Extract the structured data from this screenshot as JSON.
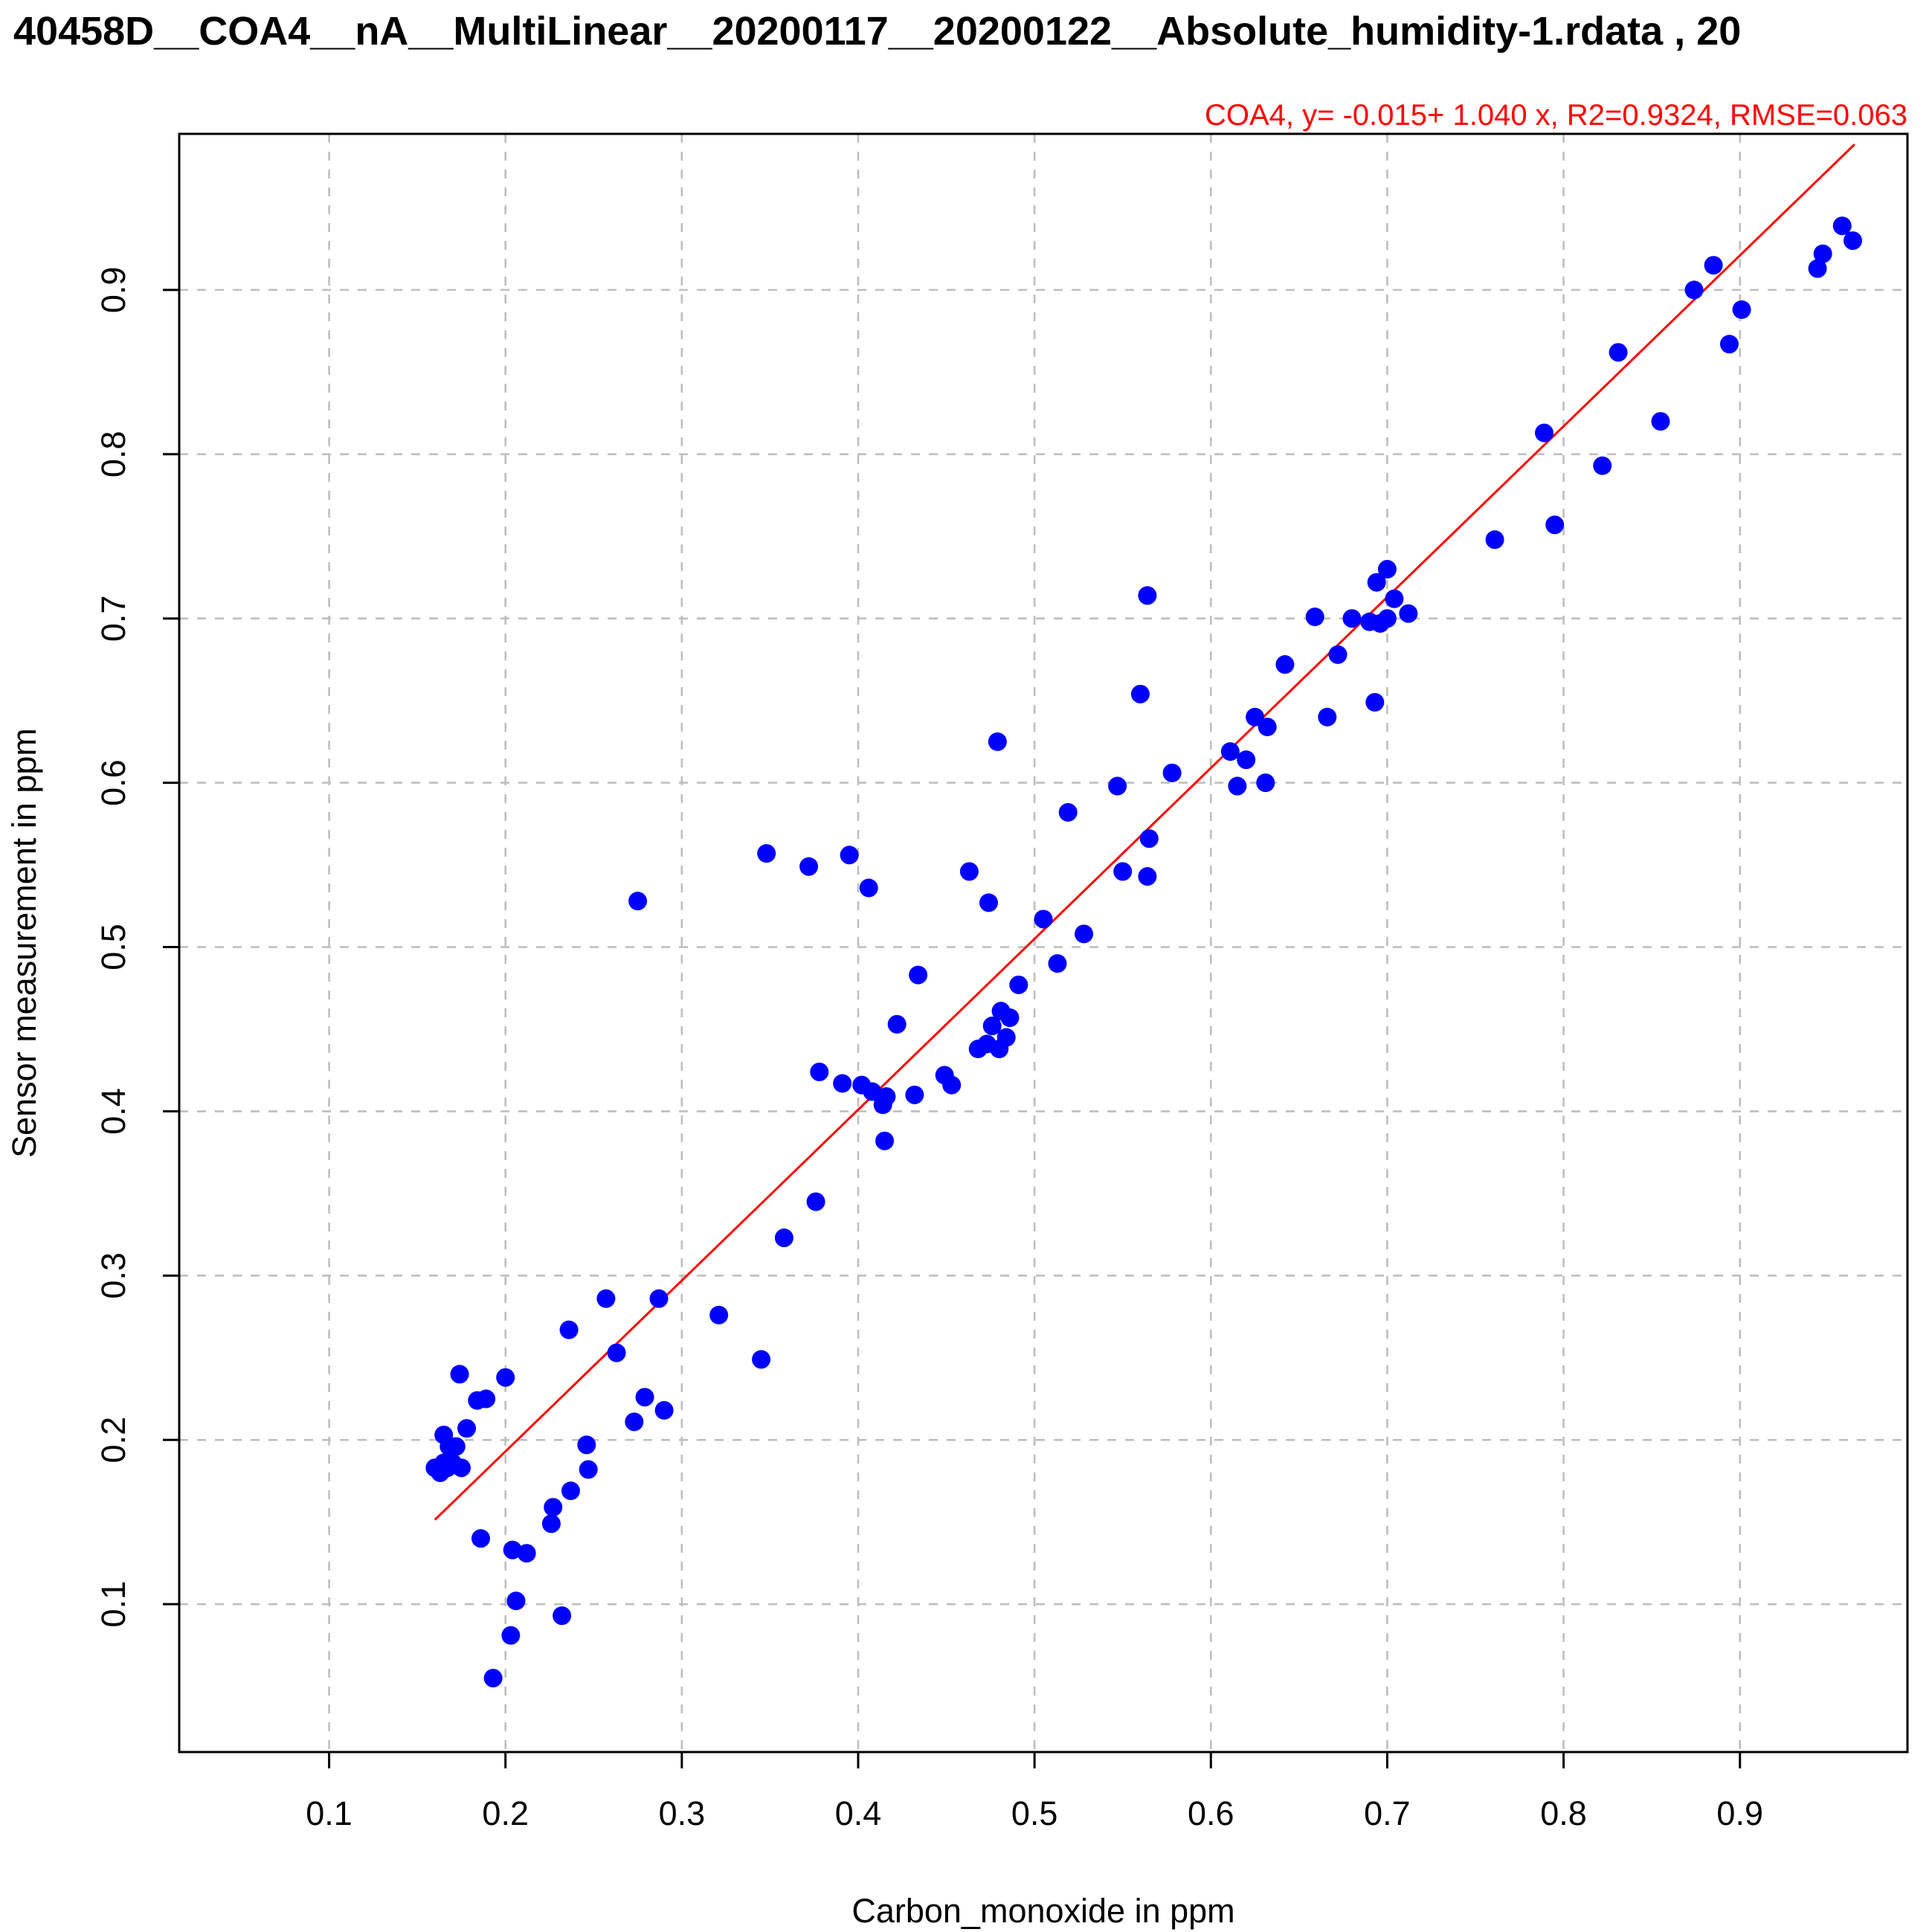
{
  "chart_data": {
    "type": "scatter",
    "title": ", 40458D__COA4__nA__MultiLinear__20200117__20200122__Absolute_humidity-1.rdata , 20",
    "xlabel": "Carbon_monoxide in ppm",
    "ylabel": "Sensor measurement in ppm",
    "xlim": [
      0.015,
      0.995
    ],
    "ylim": [
      0.01,
      0.995
    ],
    "xticks": [
      0.1,
      0.2,
      0.3,
      0.4,
      0.5,
      0.6,
      0.7,
      0.8,
      0.9
    ],
    "yticks": [
      0.1,
      0.2,
      0.3,
      0.4,
      0.5,
      0.6,
      0.7,
      0.8,
      0.9
    ],
    "xtick_labels": [
      "0.1",
      "0.2",
      "0.3",
      "0.4",
      "0.5",
      "0.6",
      "0.7",
      "0.8",
      "0.9"
    ],
    "ytick_labels": [
      "0.1",
      "0.2",
      "0.3",
      "0.4",
      "0.5",
      "0.6",
      "0.7",
      "0.8",
      "0.9"
    ],
    "grid": true,
    "point_color": "#0000ff",
    "fit_color": "#ff0000",
    "fit_annotation": "COA4, y= -0.015+ 1.040 x, R2=0.9324, RMSE=0.063",
    "fit_line": {
      "intercept": -0.015,
      "slope": 1.04,
      "x_range": [
        0.16,
        0.965
      ]
    },
    "points": [
      [
        0.16,
        0.183
      ],
      [
        0.163,
        0.18
      ],
      [
        0.165,
        0.186
      ],
      [
        0.165,
        0.203
      ],
      [
        0.167,
        0.183
      ],
      [
        0.168,
        0.196
      ],
      [
        0.17,
        0.186
      ],
      [
        0.172,
        0.196
      ],
      [
        0.174,
        0.24
      ],
      [
        0.175,
        0.183
      ],
      [
        0.178,
        0.207
      ],
      [
        0.184,
        0.224
      ],
      [
        0.186,
        0.14
      ],
      [
        0.189,
        0.225
      ],
      [
        0.193,
        0.055
      ],
      [
        0.2,
        0.238
      ],
      [
        0.203,
        0.081
      ],
      [
        0.204,
        0.133
      ],
      [
        0.206,
        0.102
      ],
      [
        0.212,
        0.131
      ],
      [
        0.226,
        0.149
      ],
      [
        0.227,
        0.159
      ],
      [
        0.232,
        0.093
      ],
      [
        0.236,
        0.267
      ],
      [
        0.237,
        0.169
      ],
      [
        0.246,
        0.197
      ],
      [
        0.247,
        0.182
      ],
      [
        0.257,
        0.286
      ],
      [
        0.263,
        0.253
      ],
      [
        0.273,
        0.211
      ],
      [
        0.275,
        0.528
      ],
      [
        0.279,
        0.226
      ],
      [
        0.287,
        0.286
      ],
      [
        0.29,
        0.218
      ],
      [
        0.321,
        0.276
      ],
      [
        0.345,
        0.249
      ],
      [
        0.348,
        0.557
      ],
      [
        0.358,
        0.323
      ],
      [
        0.372,
        0.549
      ],
      [
        0.376,
        0.345
      ],
      [
        0.378,
        0.424
      ],
      [
        0.391,
        0.417
      ],
      [
        0.395,
        0.556
      ],
      [
        0.402,
        0.416
      ],
      [
        0.406,
        0.536
      ],
      [
        0.408,
        0.412
      ],
      [
        0.414,
        0.404
      ],
      [
        0.415,
        0.382
      ],
      [
        0.416,
        0.409
      ],
      [
        0.422,
        0.453
      ],
      [
        0.432,
        0.41
      ],
      [
        0.434,
        0.483
      ],
      [
        0.449,
        0.422
      ],
      [
        0.453,
        0.416
      ],
      [
        0.463,
        0.546
      ],
      [
        0.468,
        0.438
      ],
      [
        0.473,
        0.441
      ],
      [
        0.474,
        0.527
      ],
      [
        0.476,
        0.452
      ],
      [
        0.479,
        0.625
      ],
      [
        0.48,
        0.438
      ],
      [
        0.481,
        0.461
      ],
      [
        0.484,
        0.445
      ],
      [
        0.486,
        0.457
      ],
      [
        0.491,
        0.477
      ],
      [
        0.505,
        0.517
      ],
      [
        0.513,
        0.49
      ],
      [
        0.519,
        0.582
      ],
      [
        0.528,
        0.508
      ],
      [
        0.547,
        0.598
      ],
      [
        0.55,
        0.546
      ],
      [
        0.56,
        0.654
      ],
      [
        0.564,
        0.543
      ],
      [
        0.564,
        0.714
      ],
      [
        0.565,
        0.566
      ],
      [
        0.578,
        0.606
      ],
      [
        0.611,
        0.619
      ],
      [
        0.615,
        0.598
      ],
      [
        0.62,
        0.614
      ],
      [
        0.625,
        0.64
      ],
      [
        0.631,
        0.6
      ],
      [
        0.632,
        0.634
      ],
      [
        0.642,
        0.672
      ],
      [
        0.659,
        0.701
      ],
      [
        0.666,
        0.64
      ],
      [
        0.672,
        0.678
      ],
      [
        0.68,
        0.7
      ],
      [
        0.69,
        0.698
      ],
      [
        0.693,
        0.649
      ],
      [
        0.694,
        0.722
      ],
      [
        0.696,
        0.697
      ],
      [
        0.7,
        0.73
      ],
      [
        0.7,
        0.7
      ],
      [
        0.704,
        0.712
      ],
      [
        0.712,
        0.703
      ],
      [
        0.761,
        0.748
      ],
      [
        0.789,
        0.813
      ],
      [
        0.795,
        0.757
      ],
      [
        0.822,
        0.793
      ],
      [
        0.831,
        0.862
      ],
      [
        0.855,
        0.82
      ],
      [
        0.874,
        0.9
      ],
      [
        0.885,
        0.915
      ],
      [
        0.894,
        0.867
      ],
      [
        0.901,
        0.888
      ],
      [
        0.944,
        0.913
      ],
      [
        0.947,
        0.922
      ],
      [
        0.958,
        0.939
      ],
      [
        0.964,
        0.93
      ]
    ]
  }
}
